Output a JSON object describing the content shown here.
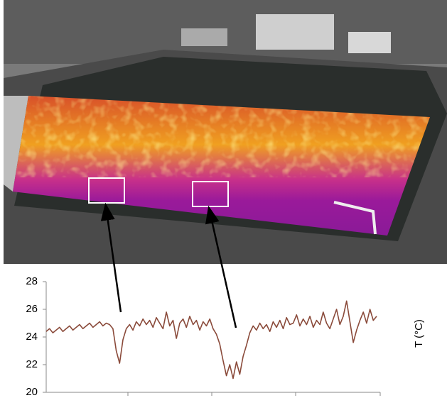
{
  "chart_data": {
    "type": "line",
    "y_label": "T (°C)",
    "values": [
      24.4,
      24.6,
      24.3,
      24.5,
      24.7,
      24.4,
      24.6,
      24.8,
      24.5,
      24.7,
      24.9,
      24.6,
      24.8,
      25.0,
      24.7,
      24.9,
      25.1,
      24.8,
      25.0,
      24.9,
      24.6,
      23.0,
      22.1,
      23.8,
      24.6,
      24.9,
      24.5,
      25.1,
      24.8,
      25.3,
      24.9,
      25.2,
      24.7,
      25.4,
      25.0,
      24.6,
      25.8,
      24.8,
      25.2,
      23.9,
      25.0,
      25.3,
      24.7,
      25.5,
      24.9,
      25.2,
      24.5,
      25.1,
      24.8,
      25.3,
      24.6,
      24.2,
      23.5,
      22.3,
      21.2,
      22.0,
      21.0,
      22.2,
      21.3,
      22.6,
      23.4,
      24.3,
      24.8,
      24.5,
      25.0,
      24.6,
      24.9,
      24.4,
      25.1,
      24.7,
      25.2,
      24.6,
      25.4,
      24.9,
      25.0,
      25.6,
      24.8,
      25.3,
      24.9,
      25.5,
      24.7,
      25.2,
      24.9,
      25.8,
      25.0,
      24.6,
      25.3,
      26.0,
      24.9,
      25.5,
      26.6,
      25.1,
      23.6,
      24.5,
      25.2,
      25.8,
      25.0,
      26.0,
      25.2,
      25.5
    ],
    "color": "#8a4a3a",
    "ylim": [
      20,
      28
    ],
    "yticks": [
      20,
      22,
      24,
      26,
      28
    ]
  }
}
